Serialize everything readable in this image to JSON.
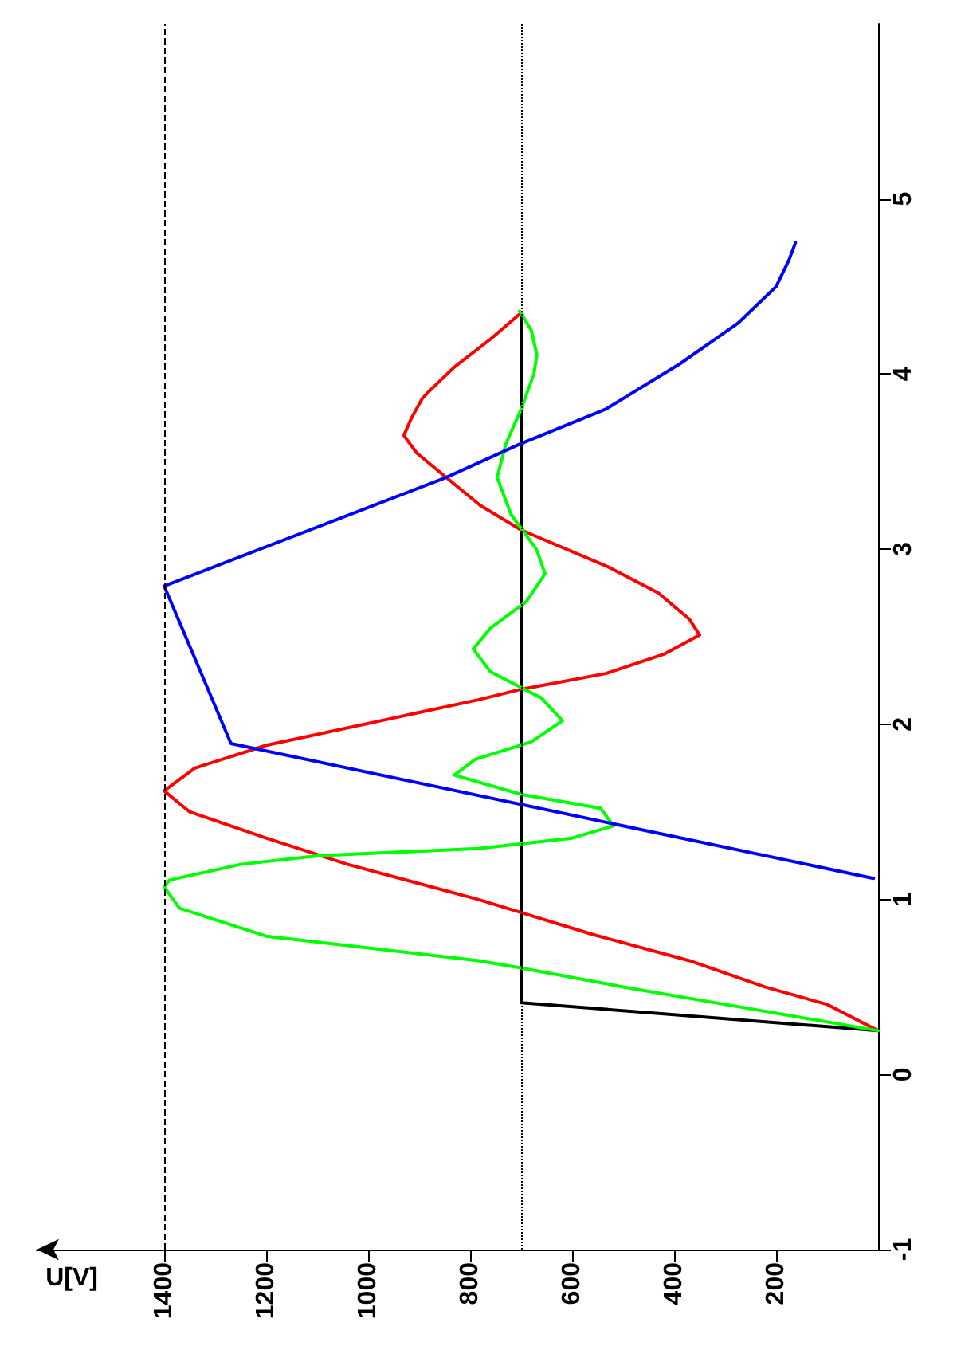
{
  "chart_data": {
    "type": "line",
    "xlabel": "U[V]",
    "ylim": [
      -1,
      6
    ],
    "yticks": [
      -1,
      0,
      1,
      2,
      3,
      4,
      5
    ],
    "xlim": [
      1650,
      0
    ],
    "xticks": [
      1400,
      1200,
      1000,
      800,
      600,
      400,
      200
    ],
    "grid": false,
    "marker": "none",
    "line_style": "solid",
    "series": [
      {
        "color": "#000000",
        "values": [
          0.25,
          0.41,
          4.35
        ],
        "x": [
          0,
          700,
          700
        ]
      },
      {
        "color": "#ff0000",
        "values": [
          0.25,
          0.4,
          0.5,
          0.65,
          0.8,
          0.93,
          1.0,
          1.2,
          1.35,
          1.5,
          1.62,
          1.75,
          1.88,
          2.14,
          2.2,
          2.29,
          2.4,
          2.51,
          2.6,
          2.75,
          2.9,
          3.11,
          3.25,
          3.41,
          3.55,
          3.65,
          3.75,
          3.86,
          3.9,
          4.04,
          4.2,
          4.35
        ],
        "x": [
          0,
          100,
          222,
          370,
          560,
          706,
          784,
          1040,
          1200,
          1350,
          1400,
          1340,
          1200,
          784,
          700,
          534,
          420,
          350,
          370,
          431,
          530,
          700,
          780,
          847,
          905,
          930,
          915,
          894,
          881,
          831,
          760,
          700
        ]
      },
      {
        "color": "#00ff00",
        "values": [
          0.25,
          0.4,
          0.5,
          0.61,
          0.65,
          0.79,
          0.95,
          1.07,
          1.11,
          1.2,
          1.25,
          1.29,
          1.35,
          1.42,
          1.52,
          1.6,
          1.71,
          1.8,
          1.9,
          2.02,
          2.15,
          2.3,
          2.43,
          2.55,
          2.7,
          2.86,
          3.0,
          3.2,
          3.41,
          3.6,
          3.8,
          4.0,
          4.11,
          4.25,
          4.36
        ],
        "x": [
          0,
          300,
          500,
          703,
          784,
          1200,
          1370,
          1400,
          1390,
          1250,
          1097,
          784,
          600,
          519,
          544,
          700,
          831,
          790,
          680,
          619,
          660,
          760,
          794,
          760,
          690,
          653,
          670,
          720,
          747,
          730,
          700,
          675,
          669,
          680,
          703
        ]
      },
      {
        "color": "#0000ff",
        "values": [
          1.12,
          1.89,
          2.79,
          3.41,
          3.6,
          3.8,
          4.06,
          4.29,
          4.5,
          4.65,
          4.75
        ],
        "x": [
          9,
          1269,
          1400,
          847,
          703,
          534,
          388,
          275,
          200,
          175,
          162
        ]
      }
    ],
    "ref_lines": [
      {
        "axis": "x",
        "value": 1400,
        "line_style": "dashed",
        "color": "#000000"
      },
      {
        "axis": "x",
        "value": 700,
        "line_style": "dotted",
        "color": "#000000"
      }
    ]
  }
}
